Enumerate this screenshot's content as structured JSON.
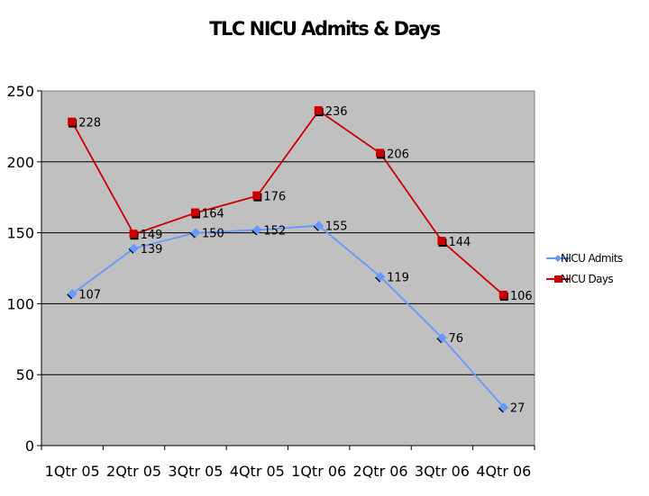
{
  "chart_data": {
    "type": "line",
    "title": "TLC NICU Admits & Days",
    "xlabel": "",
    "ylabel": "",
    "categories": [
      "1Qtr 05",
      "2Qtr 05",
      "3Qtr 05",
      "4Qtr 05",
      "1Qtr 06",
      "2Qtr 06",
      "3Qtr 06",
      "4Qtr 06"
    ],
    "series": [
      {
        "name": "NICU Admits",
        "values": [
          107,
          139,
          150,
          152,
          155,
          119,
          76,
          27
        ],
        "color": "#6699ff",
        "marker": "diamond"
      },
      {
        "name": "NICU Days",
        "values": [
          228,
          149,
          164,
          176,
          236,
          206,
          144,
          106
        ],
        "color": "#cc0000",
        "marker": "square"
      }
    ],
    "ylim": [
      0,
      250
    ],
    "yticks": [
      0,
      50,
      100,
      150,
      200,
      250
    ],
    "grid": true,
    "plot_background": "#c0c0c0",
    "legend_position": "right"
  }
}
